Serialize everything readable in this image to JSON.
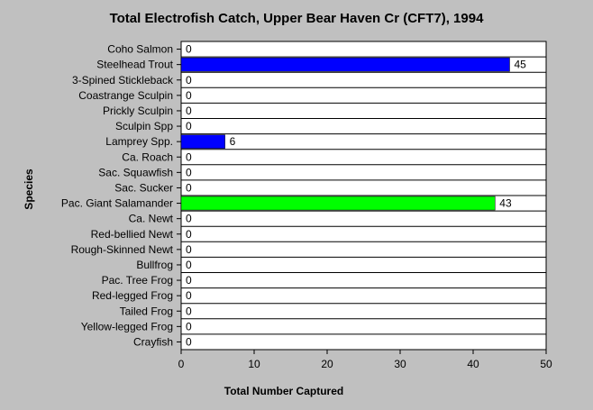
{
  "chart_data": {
    "type": "bar",
    "orientation": "horizontal",
    "title": "Total Electrofish Catch, Upper Bear Haven Cr (CFT7), 1994",
    "xlabel": "Total Number Captured",
    "ylabel": "Species",
    "xlim": [
      0,
      50
    ],
    "xticks": [
      0,
      10,
      20,
      30,
      40,
      50
    ],
    "grid": "horizontal",
    "categories": [
      "Coho Salmon",
      "Steelhead Trout",
      "3-Spined Stickleback",
      "Coastrange Sculpin",
      "Prickly Sculpin",
      "Sculpin Spp",
      "Lamprey Spp.",
      "Ca. Roach",
      "Sac. Squawfish",
      "Sac. Sucker",
      "Pac. Giant Salamander",
      "Ca. Newt",
      "Red-bellied Newt",
      "Rough-Skinned Newt",
      "Bullfrog",
      "Pac. Tree Frog",
      "Red-legged Frog",
      "Tailed Frog",
      "Yellow-legged Frog",
      "Crayfish"
    ],
    "values": [
      0,
      45,
      0,
      0,
      0,
      0,
      6,
      0,
      0,
      0,
      43,
      0,
      0,
      0,
      0,
      0,
      0,
      0,
      0,
      0
    ],
    "bar_colors": {
      "Steelhead Trout": "#0000ff",
      "Lamprey Spp.": "#0000ff",
      "Pac. Giant Salamander": "#00ff00"
    },
    "default_bar_color": "#0000ff"
  },
  "colors": {
    "background": "#c0c0c0",
    "plot_background": "#ffffff",
    "grid": "#000000"
  }
}
